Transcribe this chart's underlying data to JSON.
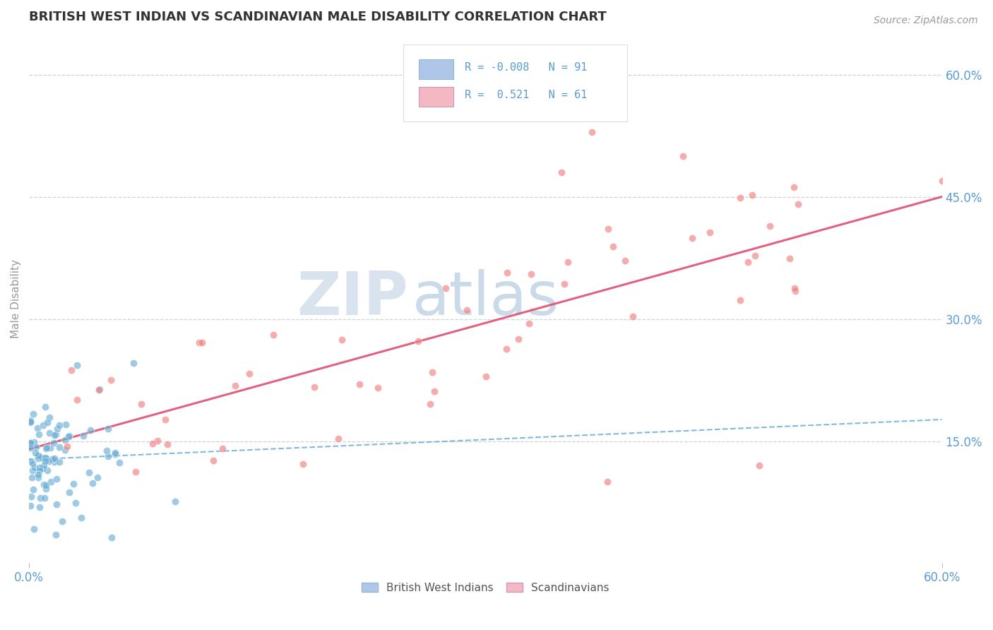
{
  "title": "BRITISH WEST INDIAN VS SCANDINAVIAN MALE DISABILITY CORRELATION CHART",
  "source": "Source: ZipAtlas.com",
  "ylabel": "Male Disability",
  "xlim": [
    0.0,
    0.6
  ],
  "ylim": [
    0.0,
    0.65
  ],
  "xtick_labels": [
    "0.0%",
    "60.0%"
  ],
  "ytick_labels": [
    "15.0%",
    "30.0%",
    "45.0%",
    "60.0%"
  ],
  "ytick_values": [
    0.15,
    0.3,
    0.45,
    0.6
  ],
  "bwi_dot_color": "#6baed6",
  "scan_dot_color": "#f08080",
  "bwi_line_color": "#6baed6",
  "scan_line_color": "#e05070",
  "bwi_r": -0.008,
  "bwi_n": 91,
  "scan_r": 0.521,
  "scan_n": 61,
  "background_color": "#ffffff",
  "grid_color": "#cccccc",
  "title_color": "#333333",
  "tick_label_color": "#5b9bd5",
  "legend_box_color": "#aec6e8",
  "legend_box_color2": "#f4b8c4"
}
